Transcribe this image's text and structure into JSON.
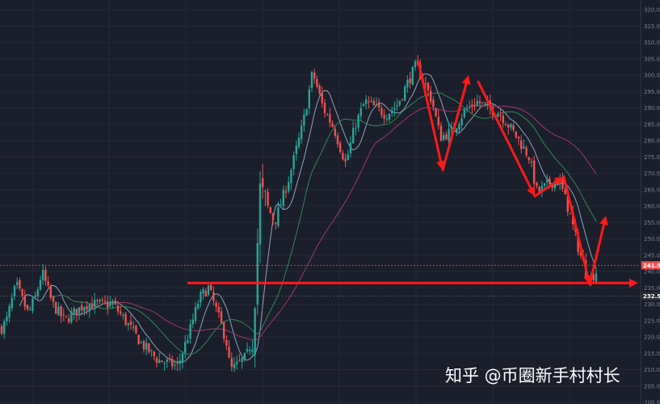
{
  "chart_data": {
    "type": "candlestick",
    "title": "",
    "xlabel": "",
    "ylabel": "",
    "ylim": [
      200,
      322
    ],
    "y_ticks": [
      200,
      205,
      210,
      215,
      220,
      225,
      230,
      235,
      240,
      245,
      250,
      255,
      260,
      265,
      270,
      275,
      280,
      285,
      290,
      295,
      300,
      305,
      310,
      315,
      320
    ],
    "y_tick_labels": [
      "200.0",
      "205.0",
      "210.0",
      "215.0",
      "220.0",
      "225.0",
      "230.0",
      "235.0",
      "240.0",
      "245.0",
      "250.0",
      "255.0",
      "260.0",
      "265.0",
      "270.0",
      "275.0",
      "280.0",
      "285.0",
      "290.0",
      "295.0",
      "300.0",
      "305.0",
      "310.0",
      "315.0",
      "320.0"
    ],
    "grid": true,
    "colors": {
      "up": "#26a69a",
      "down": "#ef5350",
      "background": "#1b1e2b",
      "grid": "#262a38",
      "annotation": "#ff1a1a",
      "price_line": "#ef5350",
      "badge_dark": "#2a2e39"
    },
    "price_levels": [
      {
        "value": 241.9,
        "label": "241.9",
        "color": "#ef5350"
      },
      {
        "value": 232.5,
        "label": "232.5",
        "color": "#2a2e39"
      }
    ],
    "support_level": 236.5,
    "series": [
      {
        "anchors": [
          [
            0,
            222
          ],
          [
            8,
            225
          ],
          [
            20,
            236
          ],
          [
            35,
            227
          ],
          [
            45,
            233
          ],
          [
            52,
            240
          ],
          [
            65,
            230
          ],
          [
            80,
            225
          ],
          [
            105,
            230
          ],
          [
            125,
            230
          ],
          [
            140,
            230
          ],
          [
            155,
            225
          ],
          [
            175,
            218
          ],
          [
            195,
            213
          ],
          [
            220,
            211
          ],
          [
            235,
            222
          ],
          [
            247,
            232
          ],
          [
            258,
            235
          ],
          [
            268,
            228
          ],
          [
            280,
            219
          ],
          [
            285,
            210
          ],
          [
            292,
            211
          ],
          [
            305,
            214
          ],
          [
            313,
            220
          ],
          [
            322,
            265
          ],
          [
            340,
            255
          ],
          [
            357,
            268
          ],
          [
            375,
            285
          ],
          [
            387,
            301
          ],
          [
            400,
            290
          ],
          [
            413,
            284
          ],
          [
            428,
            273
          ],
          [
            440,
            285
          ],
          [
            452,
            292
          ],
          [
            465,
            290
          ],
          [
            478,
            288
          ],
          [
            492,
            291
          ],
          [
            505,
            298
          ],
          [
            515,
            303
          ],
          [
            525,
            298
          ],
          [
            535,
            292
          ],
          [
            545,
            281
          ],
          [
            560,
            283
          ],
          [
            575,
            289
          ],
          [
            590,
            292
          ],
          [
            605,
            290
          ],
          [
            620,
            288
          ],
          [
            640,
            281
          ],
          [
            655,
            275
          ],
          [
            665,
            264
          ],
          [
            680,
            267
          ],
          [
            692,
            268
          ],
          [
            705,
            258
          ],
          [
            715,
            248
          ],
          [
            725,
            240
          ],
          [
            732,
            238
          ],
          [
            738,
            240
          ]
        ]
      }
    ],
    "moving_averages": [
      {
        "color": "#8fa3bc",
        "period": 7
      },
      {
        "color": "#2e8b57",
        "period": 20
      },
      {
        "color": "#9c3a6e",
        "period": 45
      }
    ],
    "annotations": {
      "horizontal_line": {
        "x_from": 232,
        "x_to": 790,
        "value": 236.5
      },
      "zigzags": [
        [
          [
            518,
            304
          ],
          [
            548,
            271
          ],
          [
            580,
            300
          ]
        ],
        [
          [
            592,
            298
          ],
          [
            662,
            263
          ],
          [
            698,
            269
          ]
        ],
        [
          [
            698,
            269
          ],
          [
            730,
            236
          ],
          [
            750,
            257
          ]
        ]
      ]
    },
    "watermark": "知乎 @币圈新手村村长"
  }
}
